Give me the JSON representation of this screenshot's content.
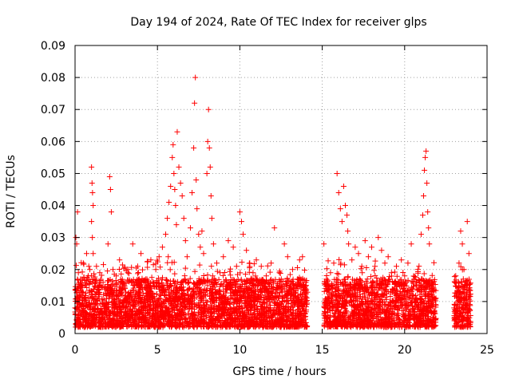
{
  "chart_data": {
    "type": "scatter",
    "title": "Day 194 of 2024, Rate Of TEC Index for receiver glps",
    "xlabel": "GPS time / hours",
    "ylabel": "ROTI / TECUs",
    "xlim": [
      0,
      25
    ],
    "ylim": [
      0,
      0.09
    ],
    "x_ticks": [
      "0",
      "5",
      "10",
      "15",
      "20",
      "25"
    ],
    "y_ticks": [
      "0",
      "0.01",
      "0.02",
      "0.03",
      "0.04",
      "0.05",
      "0.06",
      "0.07",
      "0.08",
      "0.09"
    ],
    "x_tick_values": [
      0,
      5,
      10,
      15,
      20,
      25
    ],
    "y_tick_values": [
      0,
      0.01,
      0.02,
      0.03,
      0.04,
      0.05,
      0.06,
      0.07,
      0.08,
      0.09
    ],
    "grid": true,
    "marker": "plus",
    "color": "#ff0000",
    "series": [
      {
        "points": [
          [
            0.0,
            0.008
          ],
          [
            0.05,
            0.03
          ],
          [
            0.1,
            0.028
          ],
          [
            0.15,
            0.038
          ],
          [
            0.2,
            0.019
          ],
          [
            0.25,
            0.012
          ],
          [
            0.3,
            0.009
          ],
          [
            0.4,
            0.015
          ],
          [
            0.5,
            0.022
          ],
          [
            0.6,
            0.011
          ],
          [
            0.7,
            0.025
          ],
          [
            0.8,
            0.018
          ],
          [
            0.9,
            0.02
          ],
          [
            1.0,
            0.052
          ],
          [
            1.03,
            0.047
          ],
          [
            1.06,
            0.044
          ],
          [
            1.1,
            0.04
          ],
          [
            1.0,
            0.035
          ],
          [
            1.05,
            0.03
          ],
          [
            1.1,
            0.025
          ],
          [
            1.2,
            0.017
          ],
          [
            1.3,
            0.021
          ],
          [
            1.5,
            0.019
          ],
          [
            1.7,
            0.016
          ],
          [
            1.9,
            0.014
          ],
          [
            2.0,
            0.028
          ],
          [
            2.1,
            0.049
          ],
          [
            2.15,
            0.045
          ],
          [
            2.2,
            0.038
          ],
          [
            2.3,
            0.02
          ],
          [
            2.5,
            0.018
          ],
          [
            2.7,
            0.023
          ],
          [
            3.0,
            0.015
          ],
          [
            3.2,
            0.019
          ],
          [
            3.5,
            0.028
          ],
          [
            3.8,
            0.021
          ],
          [
            4.0,
            0.025
          ],
          [
            4.3,
            0.017
          ],
          [
            4.6,
            0.023
          ],
          [
            4.9,
            0.02
          ],
          [
            5.1,
            0.024
          ],
          [
            5.3,
            0.027
          ],
          [
            5.5,
            0.031
          ],
          [
            5.6,
            0.036
          ],
          [
            5.7,
            0.041
          ],
          [
            5.8,
            0.046
          ],
          [
            5.9,
            0.055
          ],
          [
            5.95,
            0.059
          ],
          [
            6.0,
            0.05
          ],
          [
            6.05,
            0.045
          ],
          [
            6.1,
            0.04
          ],
          [
            6.15,
            0.034
          ],
          [
            6.2,
            0.063
          ],
          [
            6.3,
            0.052
          ],
          [
            6.4,
            0.047
          ],
          [
            6.5,
            0.043
          ],
          [
            6.6,
            0.036
          ],
          [
            6.7,
            0.029
          ],
          [
            6.8,
            0.024
          ],
          [
            7.0,
            0.033
          ],
          [
            7.1,
            0.044
          ],
          [
            7.2,
            0.058
          ],
          [
            7.25,
            0.072
          ],
          [
            7.3,
            0.08
          ],
          [
            7.35,
            0.048
          ],
          [
            7.4,
            0.039
          ],
          [
            7.5,
            0.031
          ],
          [
            7.6,
            0.027
          ],
          [
            7.7,
            0.032
          ],
          [
            7.8,
            0.025
          ],
          [
            8.0,
            0.05
          ],
          [
            8.05,
            0.06
          ],
          [
            8.1,
            0.07
          ],
          [
            8.15,
            0.058
          ],
          [
            8.2,
            0.052
          ],
          [
            8.25,
            0.043
          ],
          [
            8.3,
            0.036
          ],
          [
            8.4,
            0.028
          ],
          [
            8.6,
            0.022
          ],
          [
            8.8,
            0.019
          ],
          [
            9.0,
            0.024
          ],
          [
            9.3,
            0.029
          ],
          [
            9.6,
            0.027
          ],
          [
            9.8,
            0.021
          ],
          [
            10.0,
            0.038
          ],
          [
            10.1,
            0.035
          ],
          [
            10.2,
            0.031
          ],
          [
            10.4,
            0.026
          ],
          [
            10.6,
            0.022
          ],
          [
            10.8,
            0.019
          ],
          [
            11.0,
            0.023
          ],
          [
            11.3,
            0.021
          ],
          [
            11.6,
            0.018
          ],
          [
            11.9,
            0.022
          ],
          [
            12.1,
            0.033
          ],
          [
            12.4,
            0.019
          ],
          [
            12.7,
            0.028
          ],
          [
            12.9,
            0.024
          ],
          [
            13.2,
            0.02
          ],
          [
            13.5,
            0.017
          ],
          [
            13.8,
            0.024
          ],
          [
            14.0,
            0.016
          ],
          [
            15.1,
            0.028
          ],
          [
            15.3,
            0.014
          ],
          [
            15.5,
            0.019
          ],
          [
            15.7,
            0.022
          ],
          [
            15.9,
            0.05
          ],
          [
            16.0,
            0.044
          ],
          [
            16.1,
            0.039
          ],
          [
            16.2,
            0.035
          ],
          [
            16.3,
            0.046
          ],
          [
            16.4,
            0.04
          ],
          [
            16.5,
            0.037
          ],
          [
            16.55,
            0.032
          ],
          [
            16.6,
            0.028
          ],
          [
            16.8,
            0.023
          ],
          [
            17.0,
            0.027
          ],
          [
            17.2,
            0.025
          ],
          [
            17.4,
            0.021
          ],
          [
            17.6,
            0.029
          ],
          [
            17.8,
            0.024
          ],
          [
            18.0,
            0.027
          ],
          [
            18.2,
            0.021
          ],
          [
            18.4,
            0.03
          ],
          [
            18.6,
            0.026
          ],
          [
            18.8,
            0.022
          ],
          [
            19.0,
            0.024
          ],
          [
            19.2,
            0.019
          ],
          [
            19.5,
            0.021
          ],
          [
            19.8,
            0.023
          ],
          [
            20.0,
            0.018
          ],
          [
            20.2,
            0.022
          ],
          [
            20.4,
            0.028
          ],
          [
            20.6,
            0.017
          ],
          [
            20.8,
            0.02
          ],
          [
            21.0,
            0.031
          ],
          [
            21.1,
            0.037
          ],
          [
            21.15,
            0.043
          ],
          [
            21.2,
            0.051
          ],
          [
            21.25,
            0.055
          ],
          [
            21.3,
            0.057
          ],
          [
            21.35,
            0.047
          ],
          [
            21.4,
            0.038
          ],
          [
            21.45,
            0.033
          ],
          [
            21.5,
            0.028
          ],
          [
            21.7,
            0.016
          ],
          [
            21.9,
            0.011
          ],
          [
            23.0,
            0.008
          ],
          [
            23.1,
            0.018
          ],
          [
            23.2,
            0.013
          ],
          [
            23.3,
            0.022
          ],
          [
            23.4,
            0.032
          ],
          [
            23.5,
            0.028
          ],
          [
            23.6,
            0.02
          ],
          [
            23.7,
            0.015
          ],
          [
            23.8,
            0.035
          ],
          [
            23.9,
            0.025
          ]
        ]
      }
    ],
    "dense_band": {
      "note_ranges_hours": [
        [
          0,
          14.1
        ],
        [
          15.1,
          21.9
        ],
        [
          23.0,
          24.0
        ]
      ],
      "y_min": 0.002,
      "y_max": 0.017
    }
  }
}
